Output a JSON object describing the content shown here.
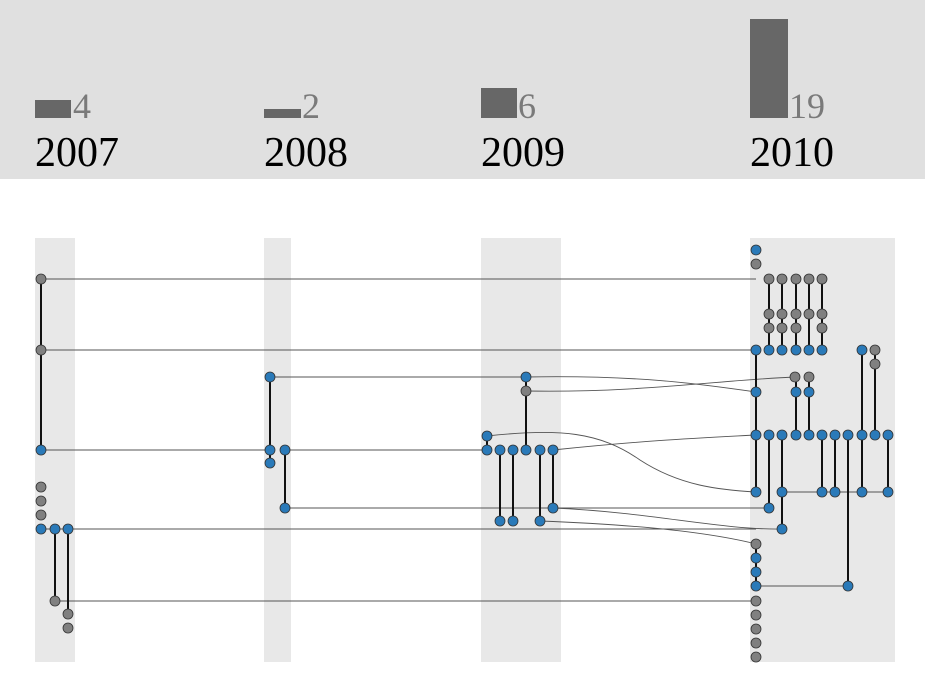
{
  "chart_data": {
    "type": "diagram",
    "title": "",
    "years": [
      {
        "year": "2007",
        "count": "4"
      },
      {
        "year": "2008",
        "count": "2"
      },
      {
        "year": "2009",
        "count": "6"
      },
      {
        "year": "2010",
        "count": "19"
      }
    ],
    "colors": {
      "header_bg": "#e0e0e0",
      "count_bar": "#676767",
      "column_band": "#e8e8e8",
      "node_active": "#2a7ab9",
      "node_inactive": "#808080",
      "connector": "#111111",
      "thread_line": "#555555"
    }
  }
}
